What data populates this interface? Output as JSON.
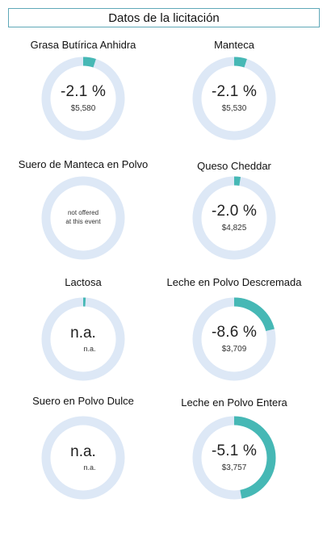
{
  "header": {
    "title": "Datos de la licitación"
  },
  "products": [
    {
      "name": "Grasa Butírica Anhidra",
      "change": "-2.1 %",
      "price": "$5,580",
      "fill": 0.05
    },
    {
      "name": "Manteca",
      "change": "-2.1 %",
      "price": "$5,530",
      "fill": 0.05
    },
    {
      "name": "Suero de Manteca en Polvo",
      "status": "not offered at this event",
      "status_line1": "not offered",
      "status_line2": "at this event",
      "fill": 0
    },
    {
      "name": "Queso Cheddar",
      "change": "-2.0 %",
      "price": "$4,825",
      "fill": 0.025
    },
    {
      "name": "Lactosa",
      "change": "n.a.",
      "price": "n.a.",
      "fill": 0.01
    },
    {
      "name": "Leche en Polvo Descremada",
      "change": "-8.6 %",
      "price": "$3,709",
      "fill": 0.21
    },
    {
      "name": "Suero en Polvo Dulce",
      "change": "n.a.",
      "price": "n.a.",
      "fill": 0
    },
    {
      "name": "Leche en Polvo Entera",
      "change": "-5.1 %",
      "price": "$3,757",
      "fill": 0.47
    }
  ],
  "colors": {
    "ring_fill": "#46b8b5",
    "ring_track": "#dde8f6",
    "header_border": "#5fa8b8"
  }
}
